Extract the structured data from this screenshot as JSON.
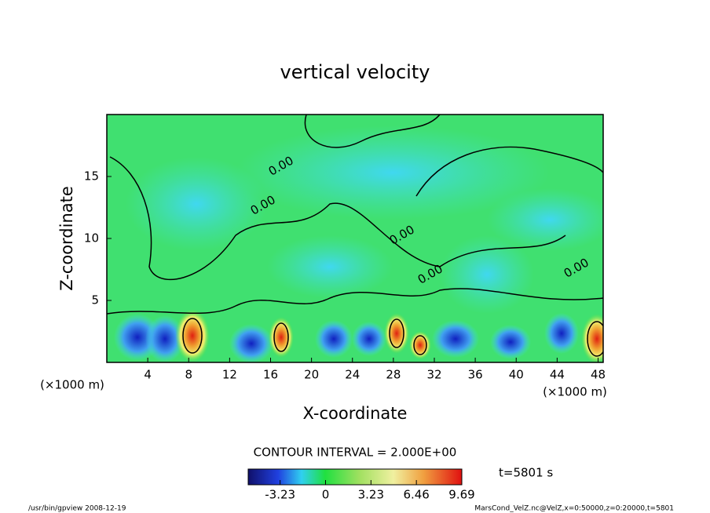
{
  "chart_data": {
    "type": "contour",
    "title": "vertical velocity",
    "x_label": "X-coordinate",
    "y_label": "Z-coordinate",
    "x_unit_label": "(×1000 m)",
    "xlim": [
      0,
      48.5
    ],
    "xticks": [
      4,
      8,
      12,
      16,
      20,
      24,
      28,
      32,
      36,
      40,
      44,
      48
    ],
    "ylim": [
      0,
      20
    ],
    "yticks": [
      5,
      10,
      15
    ],
    "contour_interval_label": "CONTOUR INTERVAL = 2.000E+00",
    "contour_labels": [
      "0.00",
      "0.00",
      "0.00",
      "0.00",
      "0.00"
    ],
    "colorbar_lim": [
      -5.5,
      9.69
    ],
    "colorbar_ticks": [
      -3.23,
      0,
      3.23,
      6.46,
      9.69
    ],
    "time_label": "t=5801 s",
    "footer_left": "/usr/bin/gpview   2008-12-19",
    "footer_right": "MarsCond_VelZ.nc@VelZ,x=0:50000,z=0:20000,t=5801"
  }
}
